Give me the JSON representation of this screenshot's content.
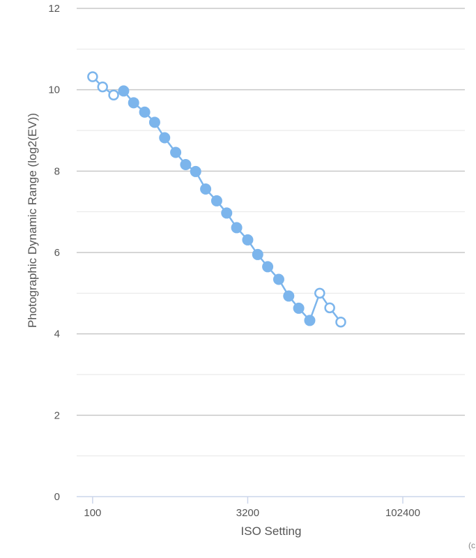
{
  "chart_data": {
    "type": "line",
    "title": "",
    "xlabel": "ISO Setting",
    "ylabel": "Photographic Dynamic Range (log2(EV))",
    "x_scale": "log2",
    "xlim": [
      70,
      409600
    ],
    "ylim": [
      0,
      12
    ],
    "x_ticks": [
      100,
      3200,
      102400
    ],
    "x_tick_labels": [
      "100",
      "3200",
      "102400"
    ],
    "y_ticks": [
      0,
      2,
      4,
      6,
      8,
      10,
      12
    ],
    "y_tick_labels": [
      "0",
      "2",
      "4",
      "6",
      "8",
      "10",
      "12"
    ],
    "grid": true,
    "legend": "none",
    "credit_text": "(c",
    "colors": {
      "series": "#7cb5ec",
      "grid": "#e6e6e6",
      "grid_major": "#c8c8c8",
      "axis": "#ccd6eb"
    },
    "series": [
      {
        "points": [
          {
            "x": 100,
            "y": 10.32,
            "filled": false
          },
          {
            "x": 125,
            "y": 10.07,
            "filled": false
          },
          {
            "x": 160,
            "y": 9.87,
            "filled": false
          },
          {
            "x": 200,
            "y": 9.97,
            "filled": true
          },
          {
            "x": 250,
            "y": 9.68,
            "filled": true
          },
          {
            "x": 320,
            "y": 9.45,
            "filled": true
          },
          {
            "x": 400,
            "y": 9.2,
            "filled": true
          },
          {
            "x": 500,
            "y": 8.82,
            "filled": true
          },
          {
            "x": 640,
            "y": 8.46,
            "filled": true
          },
          {
            "x": 800,
            "y": 8.16,
            "filled": true
          },
          {
            "x": 1000,
            "y": 7.99,
            "filled": true
          },
          {
            "x": 1250,
            "y": 7.56,
            "filled": true
          },
          {
            "x": 1600,
            "y": 7.27,
            "filled": true
          },
          {
            "x": 2000,
            "y": 6.97,
            "filled": true
          },
          {
            "x": 2500,
            "y": 6.61,
            "filled": true
          },
          {
            "x": 3200,
            "y": 6.31,
            "filled": true
          },
          {
            "x": 4000,
            "y": 5.95,
            "filled": true
          },
          {
            "x": 5000,
            "y": 5.65,
            "filled": true
          },
          {
            "x": 6400,
            "y": 5.34,
            "filled": true
          },
          {
            "x": 8000,
            "y": 4.93,
            "filled": true
          },
          {
            "x": 10000,
            "y": 4.63,
            "filled": true
          },
          {
            "x": 12800,
            "y": 4.33,
            "filled": true
          },
          {
            "x": 16000,
            "y": 5.0,
            "filled": false
          },
          {
            "x": 20000,
            "y": 4.64,
            "filled": false
          },
          {
            "x": 25600,
            "y": 4.29,
            "filled": false
          }
        ]
      }
    ]
  }
}
